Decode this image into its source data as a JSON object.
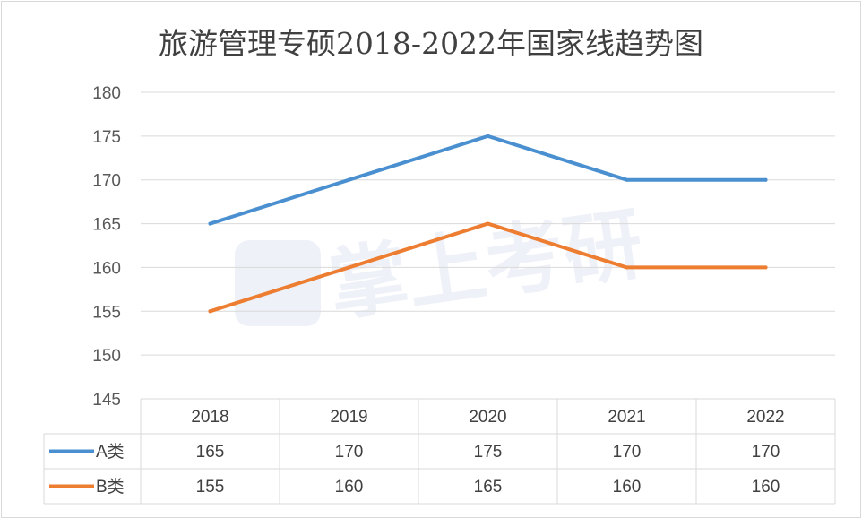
{
  "chart_data": {
    "type": "line",
    "title": "旅游管理专硕2018-2022年国家线趋势图",
    "categories": [
      "2018",
      "2019",
      "2020",
      "2021",
      "2022"
    ],
    "series": [
      {
        "name": "A类",
        "values": [
          165,
          170,
          175,
          170,
          170
        ],
        "color": "#4a90d0"
      },
      {
        "name": "B类",
        "values": [
          155,
          160,
          165,
          160,
          160
        ],
        "color": "#ed7d31"
      }
    ],
    "ylim": [
      145,
      180
    ],
    "yticks": [
      145,
      150,
      155,
      160,
      165,
      170,
      175,
      180
    ],
    "grid": true,
    "legend": "data-table",
    "watermark": "掌上考研"
  }
}
